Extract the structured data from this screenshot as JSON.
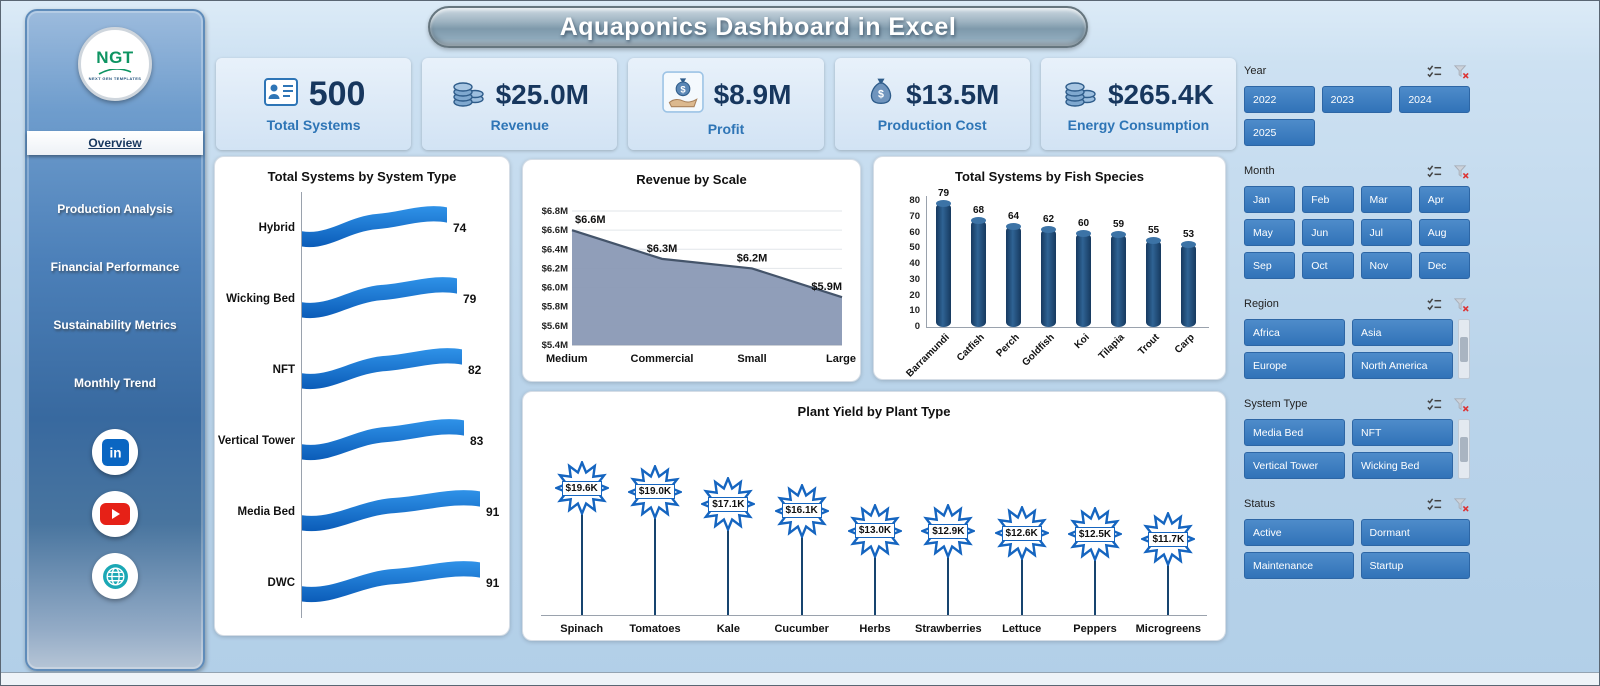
{
  "window": {
    "title": "Aquaponics Dashboard in Excel"
  },
  "logo": {
    "text": "NGT",
    "subtext": "NEXT GEN TEMPLATES"
  },
  "sidebar": {
    "items": [
      {
        "label": "Overview",
        "active": true
      },
      {
        "label": "Production Analysis",
        "active": false
      },
      {
        "label": "Financial Performance",
        "active": false
      },
      {
        "label": "Sustainability Metrics",
        "active": false
      },
      {
        "label": "Monthly Trend",
        "active": false
      }
    ],
    "social": [
      {
        "name": "linkedin-icon"
      },
      {
        "name": "youtube-icon"
      },
      {
        "name": "website-icon"
      }
    ]
  },
  "kpis": [
    {
      "value": "500",
      "label": "Total Systems",
      "icon": "id-card-icon"
    },
    {
      "value": "$25.0M",
      "label": "Revenue",
      "icon": "coins-icon"
    },
    {
      "value": "$8.9M",
      "label": "Profit",
      "icon": "hand-money-icon"
    },
    {
      "value": "$13.5M",
      "label": "Production Cost",
      "icon": "money-bag-icon"
    },
    {
      "value": "$265.4K",
      "label": "Energy Consumption",
      "icon": "coins-icon"
    }
  ],
  "chart_data": [
    {
      "type": "bar",
      "orientation": "horizontal",
      "title": "Total Systems by System Type",
      "categories": [
        "Hybrid",
        "Wicking Bed",
        "NFT",
        "Vertical Tower",
        "Media Bed",
        "DWC"
      ],
      "values": [
        74,
        79,
        82,
        83,
        91,
        91
      ],
      "xlim": [
        0,
        91
      ]
    },
    {
      "type": "area",
      "title": "Revenue by Scale",
      "categories": [
        "Medium",
        "Commercial",
        "Small",
        "Large"
      ],
      "values": [
        6.6,
        6.3,
        6.2,
        5.9
      ],
      "point_labels": [
        "$6.6M",
        "$6.3M",
        "$6.2M",
        "$5.9M"
      ],
      "ylim": [
        5.4,
        6.8
      ],
      "ytick_labels": [
        "$5.4M",
        "$5.6M",
        "$5.8M",
        "$6.0M",
        "$6.2M",
        "$6.4M",
        "$6.6M",
        "$6.8M"
      ]
    },
    {
      "type": "bar",
      "orientation": "vertical",
      "title": "Total Systems by Fish Species",
      "categories": [
        "Barramundi",
        "Catfish",
        "Perch",
        "Goldfish",
        "Koi",
        "Tilapia",
        "Trout",
        "Carp"
      ],
      "values": [
        79,
        68,
        64,
        62,
        60,
        59,
        55,
        53
      ],
      "ylim": [
        0,
        80
      ],
      "yticks": [
        0,
        10,
        20,
        30,
        40,
        50,
        60,
        70,
        80
      ]
    },
    {
      "type": "bar",
      "orientation": "vertical",
      "marker": "star-label",
      "title": "Plant Yield by Plant Type",
      "categories": [
        "Spinach",
        "Tomatoes",
        "Kale",
        "Cucumber",
        "Herbs",
        "Strawberries",
        "Lettuce",
        "Peppers",
        "Microgreens"
      ],
      "values": [
        19.6,
        19.0,
        17.1,
        16.1,
        13.0,
        12.9,
        12.6,
        12.5,
        11.7
      ],
      "point_labels": [
        "$19.6K",
        "$19.0K",
        "$17.1K",
        "$16.1K",
        "$13.0K",
        "$12.9K",
        "$12.6K",
        "$12.5K",
        "$11.7K"
      ]
    }
  ],
  "filters": [
    {
      "label": "Year",
      "options": [
        "2022",
        "2023",
        "2024",
        "2025"
      ],
      "per_row": 3,
      "scrollbar": false
    },
    {
      "label": "Month",
      "options": [
        "Jan",
        "Feb",
        "Mar",
        "Apr",
        "May",
        "Jun",
        "Jul",
        "Aug",
        "Sep",
        "Oct",
        "Nov",
        "Dec"
      ],
      "per_row": 4,
      "scrollbar": false
    },
    {
      "label": "Region",
      "options": [
        "Africa",
        "Asia",
        "Europe",
        "North America"
      ],
      "per_row": 2,
      "scrollbar": true
    },
    {
      "label": "System Type",
      "options": [
        "Media Bed",
        "NFT",
        "Vertical Tower",
        "Wicking Bed"
      ],
      "per_row": 2,
      "scrollbar": true
    },
    {
      "label": "Status",
      "options": [
        "Active",
        "Dormant",
        "Maintenance",
        "Startup"
      ],
      "per_row": 2,
      "scrollbar": false
    }
  ],
  "colors": {
    "accent_blue": "#2E75B6",
    "dark_navy": "#1F4E79",
    "slicer_button": "#3B7EC3",
    "bar_fill": "#1F4E79",
    "area_fill": "#8A99B5",
    "ribbon_blue": "#0E6FD0"
  }
}
